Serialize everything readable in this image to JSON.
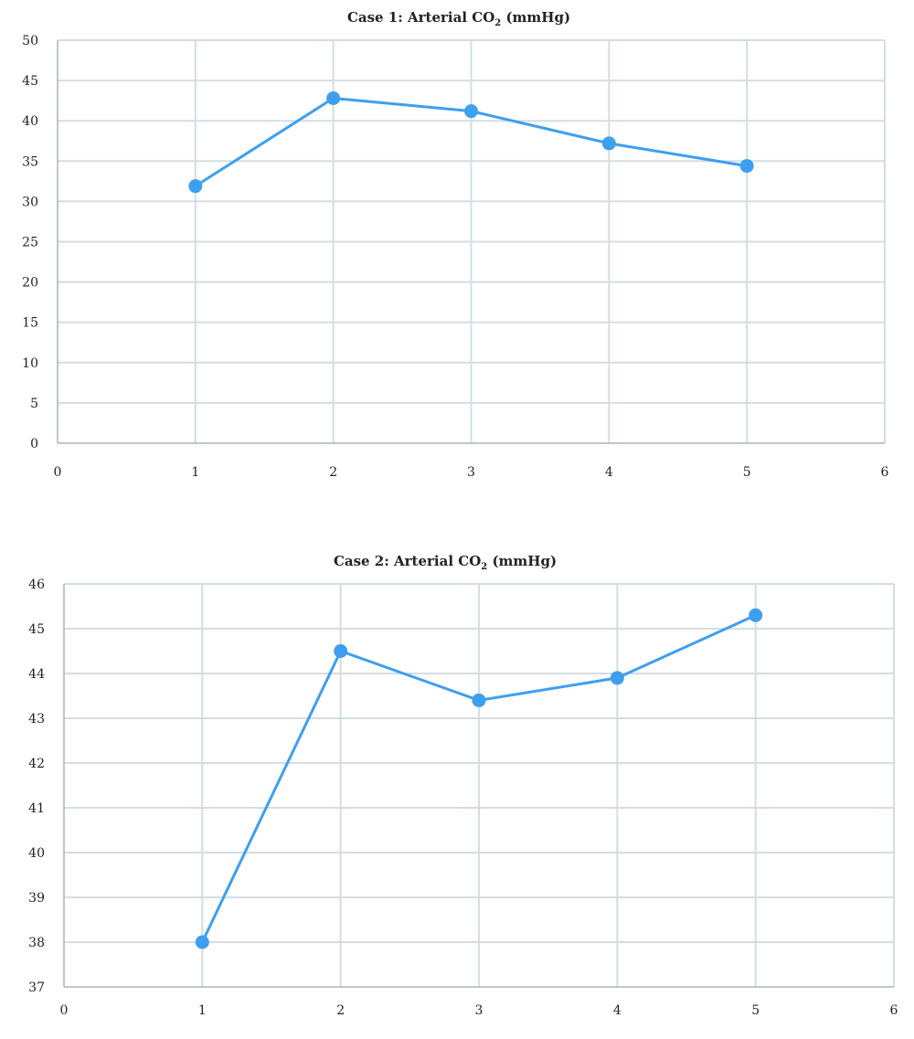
{
  "colors": {
    "series": "#3d9ff0"
  },
  "chart_data": [
    {
      "type": "line",
      "title": "Case 1: Arterial CO",
      "title_subscript": "2",
      "title_suffix": " (mmHg)",
      "x": [
        1,
        2,
        3,
        4,
        5
      ],
      "values": [
        31.9,
        42.8,
        41.2,
        37.2,
        34.4
      ],
      "xlim": [
        0,
        6
      ],
      "ylim": [
        0,
        50
      ],
      "xticks": [
        0,
        1,
        2,
        3,
        4,
        5,
        6
      ],
      "yticks": [
        0,
        5,
        10,
        15,
        20,
        25,
        30,
        35,
        40,
        45,
        50
      ],
      "xlabel": "",
      "ylabel": "",
      "grid": true,
      "legend": "none"
    },
    {
      "type": "line",
      "title": "Case 2: Arterial CO",
      "title_subscript": "2",
      "title_suffix": " (mmHg)",
      "x": [
        1,
        2,
        3,
        4,
        5
      ],
      "values": [
        38.0,
        44.5,
        43.4,
        43.9,
        45.3
      ],
      "xlim": [
        0,
        6
      ],
      "ylim": [
        37,
        46
      ],
      "xticks": [
        0,
        1,
        2,
        3,
        4,
        5,
        6
      ],
      "yticks": [
        37,
        38,
        39,
        40,
        41,
        42,
        43,
        44,
        45,
        46
      ],
      "xlabel": "",
      "ylabel": "",
      "grid": true,
      "legend": "none"
    }
  ]
}
